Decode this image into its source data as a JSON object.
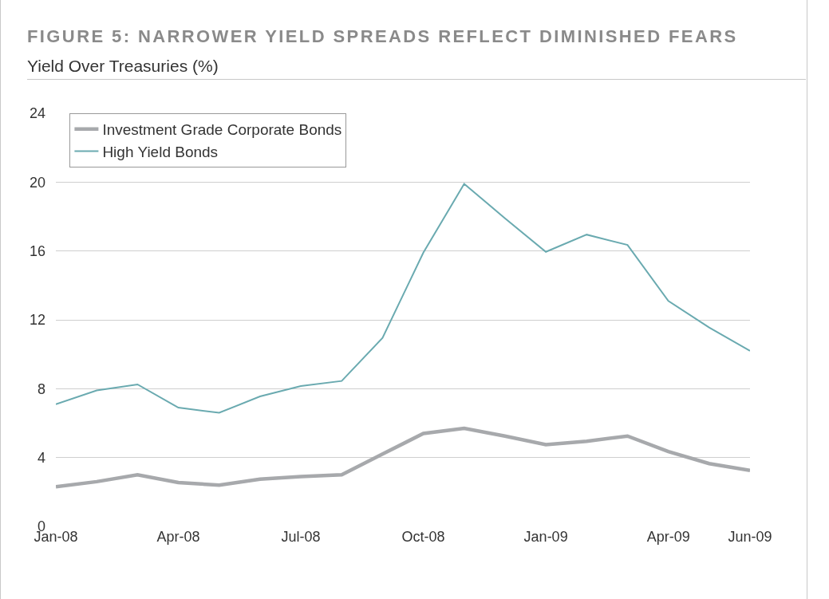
{
  "chart_data": {
    "type": "line",
    "title": "FIGURE 5: NARROWER YIELD SPREADS REFLECT DIMINISHED FEARS",
    "subtitle": "Yield Over Treasuries (%)",
    "categories": [
      "Jan-08",
      null,
      null,
      "Apr-08",
      null,
      null,
      "Jul-08",
      null,
      null,
      "Oct-08",
      null,
      null,
      "Jan-09",
      null,
      null,
      "Apr-09",
      null,
      "Jun-09"
    ],
    "series": [
      {
        "name": "Investment Grade Corporate Bonds",
        "color": "#a7a9ac",
        "values": [
          2.3,
          2.6,
          3.0,
          2.55,
          2.4,
          2.75,
          2.9,
          3.0,
          4.2,
          5.4,
          5.7,
          5.25,
          4.75,
          4.95,
          5.25,
          4.35,
          3.65,
          3.25
        ]
      },
      {
        "name": "High Yield Bonds",
        "color": "#6aaab0",
        "values": [
          7.1,
          7.9,
          8.25,
          6.9,
          6.6,
          7.55,
          8.15,
          8.45,
          10.95,
          15.9,
          19.9,
          17.9,
          15.95,
          16.95,
          16.35,
          13.1,
          11.55,
          10.2
        ]
      }
    ],
    "ylim": [
      0,
      24
    ],
    "yticks": [
      0,
      4,
      8,
      12,
      16,
      20,
      24
    ],
    "grid": "y",
    "legend": "top left",
    "marker": "none",
    "line_style": "solid"
  }
}
